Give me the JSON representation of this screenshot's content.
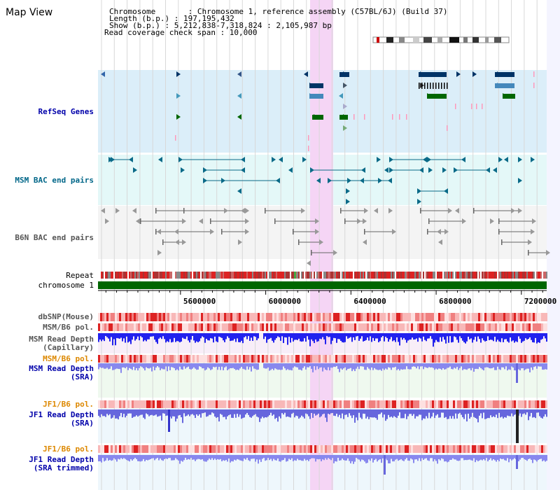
{
  "view_title": "Map View",
  "info": {
    "chromosome_line": "Chromosome       : Chromosome 1, reference assembly (C57BL/6J) (Build 37)",
    "length_line": "Length (b.p.) : 197,195,432",
    "show_line": "Show (b.p.) : 5,212,838-7,318,824 : 2,105,987 bp",
    "span_line": "Read coverage check span : 10,000"
  },
  "tracks": {
    "refseq": "RefSeq Genes",
    "msm_bac": "MSM BAC end pairs",
    "b6n_bac": "B6N BAC end pairs",
    "repeat": "Repeat",
    "chromosome": "chromosome 1",
    "dbsnp": "dbSNP(Mouse)",
    "msm_b6_pol_1": "MSM/B6 pol.",
    "msm_depth_cap_1": "MSM Read Depth",
    "msm_depth_cap_2": "(Capillary)",
    "msm_b6_pol_2": "MSM/B6 pol.",
    "msm_depth_sra_1": "MSM Read Depth",
    "msm_depth_sra_2": "(SRA)",
    "jf1_b6_pol_1": "JF1/B6 pol.",
    "jf1_depth_sra_1": "JF1 Read Depth",
    "jf1_depth_sra_2": "(SRA)",
    "jf1_b6_pol_2": "JF1/B6 pol.",
    "jf1_depth_trim_1": "JF1 Read Depth",
    "jf1_depth_trim_2": "(SRA trimmed)"
  },
  "axis": {
    "ticks": [
      5600000,
      6000000,
      6400000,
      6800000,
      7200000
    ],
    "range": [
      5212838,
      7318824
    ]
  },
  "colors": {
    "refseq_bg": "#dbeef9",
    "msm_bg": "#e4f8f8",
    "b6n_bg": "#f4f4f4",
    "highlight": "#f5d5f5",
    "refseq_label": "#0000aa",
    "msm_label": "#006688",
    "b6n_label": "#555555",
    "pol_orange": "#dd8800",
    "depth_blue": "#0000aa",
    "chromosome_green": "#006600"
  }
}
